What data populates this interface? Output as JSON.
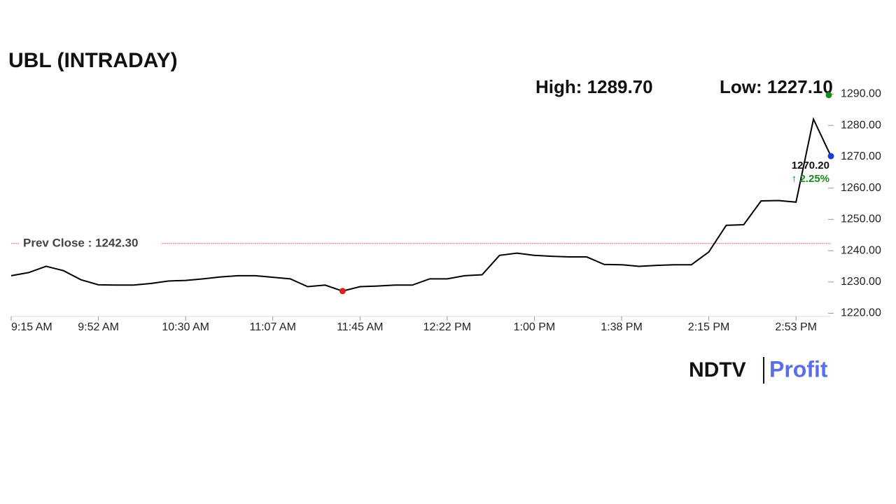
{
  "chart_data": {
    "type": "line",
    "title": "UBL (INTRADAY)",
    "categories": [
      "9:15 AM",
      null,
      null,
      null,
      null,
      "9:52 AM",
      null,
      null,
      null,
      null,
      "10:30 AM",
      null,
      null,
      null,
      null,
      "11:07 AM",
      null,
      null,
      null,
      null,
      "11:45 AM",
      null,
      null,
      null,
      null,
      "12:22 PM",
      null,
      null,
      null,
      null,
      "1:00 PM",
      null,
      null,
      null,
      null,
      "1:38 PM",
      null,
      null,
      null,
      null,
      "2:15 PM",
      null,
      null,
      null,
      null,
      "2:53 PM",
      null,
      null
    ],
    "series": [
      {
        "color": "#000000",
        "values": [
          1232,
          1233,
          1235,
          1233.6,
          1230.7,
          1229.1,
          1229,
          1229,
          1229.5,
          1230.3,
          1230.5,
          1231,
          1231.6,
          1232,
          1232,
          1231.5,
          1231,
          1228.5,
          1229,
          1227.1,
          1228.5,
          1228.7,
          1229,
          1229,
          1231,
          1231,
          1232,
          1232.3,
          1238.5,
          1239.2,
          1238.5,
          1238.2,
          1238,
          1238,
          1235.6,
          1235.5,
          1235,
          1235.3,
          1235.5,
          1235.5,
          1239.6,
          1248.1,
          1248.3,
          1255.9,
          1256,
          1255.5,
          1282,
          1270.2
        ]
      }
    ],
    "ylim": [
      1219,
      1291
    ],
    "yticks": [
      {
        "value": 1220,
        "label": "1220.00"
      },
      {
        "value": 1230,
        "label": "1230.00"
      },
      {
        "value": 1240,
        "label": "1240.00"
      },
      {
        "value": 1250,
        "label": "1250.00"
      },
      {
        "value": 1260,
        "label": "1260.00"
      },
      {
        "value": 1270,
        "label": "1270.00"
      },
      {
        "value": 1280,
        "label": "1280.00"
      },
      {
        "value": 1290,
        "label": "1290.00"
      }
    ],
    "prev_close": {
      "value": 1242.3,
      "label": "Prev Close : 1242.30",
      "color": "#e07060"
    },
    "high": {
      "value": 1289.7,
      "label": "High: 1289.70",
      "color": "#1a8a1a"
    },
    "low": {
      "value": 1227.1,
      "label": "Low: 1227.10",
      "color": "#e02020"
    },
    "last": {
      "value": 1270.2,
      "label": "1270.20",
      "change_label": "↑ 2.25%",
      "color": "#1a3fd0",
      "change_color": "#1a8a1a"
    }
  },
  "logo": {
    "left": "NDTV",
    "right": "Profit"
  }
}
